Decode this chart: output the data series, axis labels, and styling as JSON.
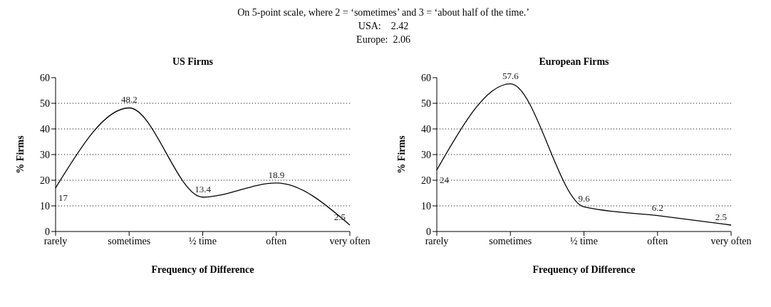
{
  "chart_data": [
    {
      "type": "line",
      "title": "US Firms",
      "xlabel": "Frequency of Difference",
      "ylabel": "% Firms",
      "annotations": [
        "On 5-point scale, where 2 = ‘sometimes’ and 3 = ‘about half of the time.’",
        "USA:    2.42",
        "Europe:  2.06"
      ],
      "categories": [
        "rarely",
        "sometimes",
        "½ time",
        "often",
        "very often"
      ],
      "values": [
        17,
        48.2,
        13.4,
        18.9,
        2.5
      ],
      "color": "#000000",
      "ylim": [
        0,
        60
      ],
      "yticks": [
        0,
        10,
        20,
        30,
        40,
        50,
        60
      ],
      "grid": "y",
      "data_labels": true
    },
    {
      "type": "line",
      "title": "European Firms",
      "xlabel": "Frequency of Difference",
      "ylabel": "% Firms",
      "categories": [
        "rarely",
        "sometimes",
        "½ time",
        "often",
        "very often"
      ],
      "values": [
        24,
        57.6,
        9.6,
        6.2,
        2.5
      ],
      "color": "#000000",
      "ylim": [
        0,
        60
      ],
      "yticks": [
        0,
        10,
        20,
        30,
        40,
        50,
        60
      ],
      "grid": "y",
      "data_labels": true
    }
  ]
}
